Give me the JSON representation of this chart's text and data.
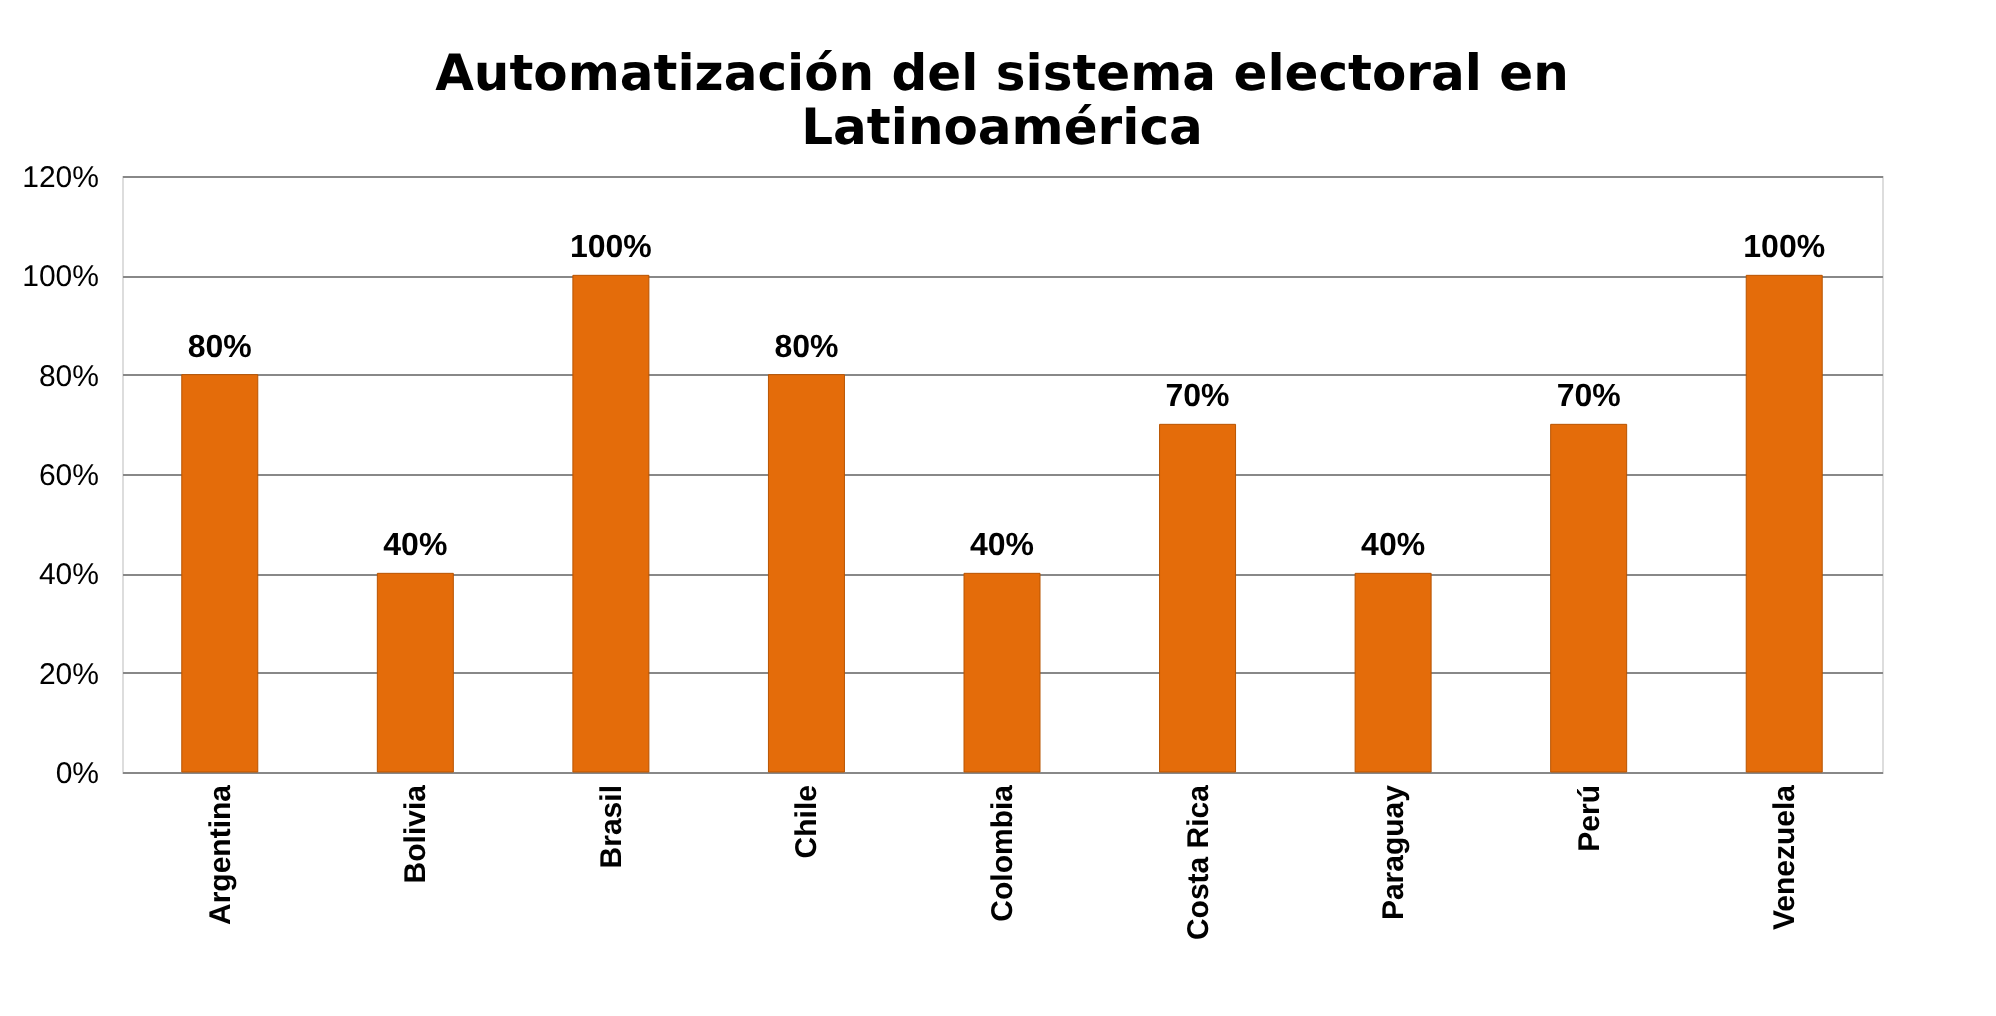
{
  "chart_data": {
    "type": "bar",
    "title": "Automatización del sistema electoral en Latinoamérica",
    "categories": [
      "Argentina",
      "Bolivia",
      "Brasil",
      "Chile",
      "Colombia",
      "Costa Rica",
      "Paraguay",
      "Perú",
      "Venezuela"
    ],
    "values": [
      80,
      40,
      100,
      80,
      40,
      70,
      40,
      70,
      100
    ],
    "value_labels": [
      "80%",
      "40%",
      "100%",
      "80%",
      "40%",
      "70%",
      "40%",
      "70%",
      "100%"
    ],
    "color": "#e46c0a",
    "ylim": [
      0,
      120
    ],
    "yticks": [
      {
        "value": 0,
        "label": "0%"
      },
      {
        "value": 20,
        "label": "20%"
      },
      {
        "value": 40,
        "label": "40%"
      },
      {
        "value": 60,
        "label": "60%"
      },
      {
        "value": 80,
        "label": "80%"
      },
      {
        "value": 100,
        "label": "100%"
      },
      {
        "value": 120,
        "label": "120%"
      }
    ],
    "grid": "y"
  }
}
